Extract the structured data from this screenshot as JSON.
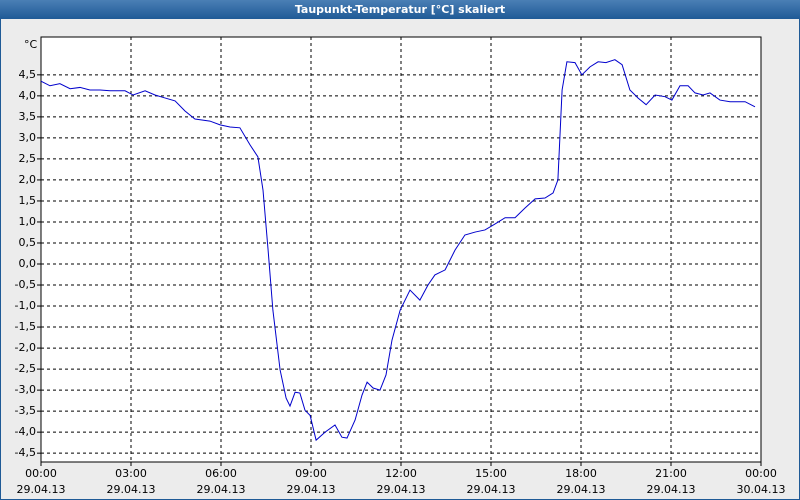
{
  "chart_data": {
    "type": "line",
    "title": "Taupunkt-Temperatur [°C] skaliert",
    "y_unit": "°C",
    "x": [
      0,
      0.3,
      0.63,
      0.97,
      1.3,
      1.63,
      1.97,
      2.3,
      2.8,
      3.07,
      3.47,
      3.8,
      4.13,
      4.47,
      4.8,
      5.13,
      5.63,
      5.97,
      6.3,
      6.63,
      6.97,
      7.23,
      7.4,
      7.57,
      7.73,
      7.97,
      8.17,
      8.3,
      8.47,
      8.63,
      8.8,
      8.97,
      9.17,
      9.47,
      9.8,
      10.03,
      10.2,
      10.47,
      10.7,
      10.87,
      11.07,
      11.3,
      11.5,
      11.7,
      11.97,
      12.3,
      12.63,
      12.9,
      13.13,
      13.47,
      13.8,
      14.13,
      14.47,
      14.8,
      15.13,
      15.47,
      15.8,
      16.13,
      16.47,
      16.8,
      17.07,
      17.23,
      17.37,
      17.53,
      17.8,
      18.03,
      18.3,
      18.57,
      18.83,
      19.13,
      19.37,
      19.63,
      19.9,
      20.17,
      20.47,
      20.8,
      21.03,
      21.3,
      21.57,
      21.8,
      22.07,
      22.3,
      22.63,
      22.97,
      23.47,
      23.8
    ],
    "series": [
      {
        "color": "#0000cc",
        "values": [
          4.35,
          4.24,
          4.29,
          4.17,
          4.2,
          4.14,
          4.14,
          4.12,
          4.12,
          4.02,
          4.12,
          4.02,
          3.95,
          3.88,
          3.64,
          3.45,
          3.4,
          3.31,
          3.26,
          3.24,
          2.83,
          2.55,
          1.76,
          0.33,
          -1.1,
          -2.52,
          -3.19,
          -3.38,
          -3.05,
          -3.07,
          -3.48,
          -3.6,
          -4.19,
          -4.0,
          -3.83,
          -4.12,
          -4.14,
          -3.71,
          -3.12,
          -2.81,
          -2.95,
          -3.0,
          -2.64,
          -1.81,
          -1.1,
          -0.62,
          -0.86,
          -0.5,
          -0.26,
          -0.14,
          0.33,
          0.69,
          0.76,
          0.81,
          0.95,
          1.1,
          1.1,
          1.33,
          1.55,
          1.57,
          1.69,
          2.0,
          4.14,
          4.81,
          4.79,
          4.5,
          4.69,
          4.81,
          4.79,
          4.86,
          4.74,
          4.14,
          3.95,
          3.79,
          4.02,
          3.98,
          3.9,
          4.24,
          4.24,
          4.07,
          4.02,
          4.07,
          3.9,
          3.86,
          3.86,
          3.74
        ]
      }
    ],
    "xlim": [
      0,
      24
    ],
    "xticks": [
      {
        "value": 0,
        "label": "00:00",
        "date": "29.04.13"
      },
      {
        "value": 3,
        "label": "03:00",
        "date": "29.04.13"
      },
      {
        "value": 6,
        "label": "06:00",
        "date": "29.04.13"
      },
      {
        "value": 9,
        "label": "09:00",
        "date": "29.04.13"
      },
      {
        "value": 12,
        "label": "12:00",
        "date": "29.04.13"
      },
      {
        "value": 15,
        "label": "15:00",
        "date": "29.04.13"
      },
      {
        "value": 18,
        "label": "18:00",
        "date": "29.04.13"
      },
      {
        "value": 21,
        "label": "21:00",
        "date": "29.04.13"
      },
      {
        "value": 24,
        "label": "00:00",
        "date": "30.04.13"
      }
    ],
    "ylim": [
      -4.71,
      5.4
    ],
    "yticks": [
      {
        "value": -4.5,
        "label": "-4,5"
      },
      {
        "value": -4,
        "label": "-4,0"
      },
      {
        "value": -3.5,
        "label": "-3,5"
      },
      {
        "value": -3,
        "label": "-3,0"
      },
      {
        "value": -2.5,
        "label": "-2,5"
      },
      {
        "value": -2,
        "label": "-2,0"
      },
      {
        "value": -1.5,
        "label": "-1,5"
      },
      {
        "value": -1,
        "label": "-1,0"
      },
      {
        "value": -0.5,
        "label": "-0,5"
      },
      {
        "value": 0,
        "label": "0,0"
      },
      {
        "value": 0.5,
        "label": "0,5"
      },
      {
        "value": 1,
        "label": "1,0"
      },
      {
        "value": 1.5,
        "label": "1,5"
      },
      {
        "value": 2,
        "label": "2,0"
      },
      {
        "value": 2.5,
        "label": "2,5"
      },
      {
        "value": 3,
        "label": "3,0"
      },
      {
        "value": 3.5,
        "label": "3,5"
      },
      {
        "value": 4,
        "label": "4,0"
      },
      {
        "value": 4.5,
        "label": "4,5"
      }
    ],
    "grid": true
  }
}
